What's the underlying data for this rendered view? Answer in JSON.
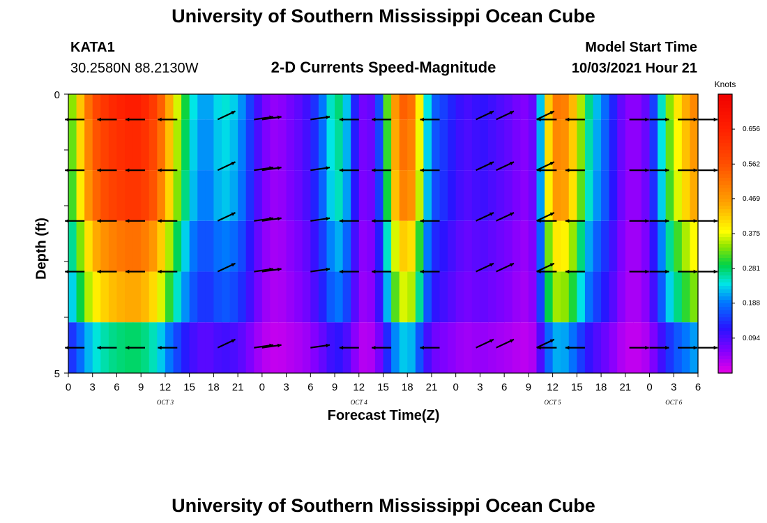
{
  "page": {
    "top_title": "University of Southern Mississippi Ocean Cube",
    "bottom_title": "University of Southern Mississippi Ocean Cube"
  },
  "station": {
    "id": "KATA1",
    "coords": "30.2580N  88.2130W"
  },
  "model_start": {
    "label": "Model Start Time",
    "value": "10/03/2021 Hour 21"
  },
  "chart_data": {
    "type": "heatmap",
    "title": "2-D Currents Speed-Magnitude",
    "xlabel": "Forecast Time(Z)",
    "ylabel": "Depth (ft)",
    "x_ticks": [
      "0",
      "3",
      "6",
      "9",
      "12",
      "15",
      "18",
      "21",
      "0",
      "3",
      "6",
      "9",
      "12",
      "15",
      "18",
      "21",
      "0",
      "3",
      "6",
      "9",
      "12",
      "15",
      "18",
      "21",
      "0",
      "3",
      "6"
    ],
    "date_labels": [
      {
        "text": "OCT 3",
        "tick_index": 4
      },
      {
        "text": "OCT 4",
        "tick_index": 12
      },
      {
        "text": "OCT 5",
        "tick_index": 20
      },
      {
        "text": "OCT 6",
        "tick_index": 25
      }
    ],
    "y_ticks": [
      "0",
      "5"
    ],
    "y_range": [
      0,
      5
    ],
    "x_range_hours": [
      0,
      78
    ],
    "colorbar": {
      "unit": "Knots",
      "ticks": [
        "0.656",
        "0.562",
        "0.469",
        "0.375",
        "0.281",
        "0.188",
        "0.094"
      ],
      "range": [
        0,
        0.75
      ]
    },
    "speed_profile_hours": [
      0,
      1,
      2,
      3,
      4,
      5,
      6,
      7,
      8,
      9,
      10,
      11,
      12,
      13,
      14,
      15,
      16,
      17,
      18,
      19,
      20,
      21,
      22,
      23,
      24,
      25,
      26,
      27,
      28,
      29,
      30,
      31,
      32,
      33,
      34,
      35,
      36,
      37,
      38,
      39,
      40,
      41,
      42,
      43,
      44,
      45,
      46,
      47,
      48,
      49,
      50,
      51,
      52,
      53,
      54,
      55,
      56,
      57,
      58,
      59,
      60,
      61,
      62,
      63,
      64,
      65,
      66,
      67,
      68,
      69,
      70,
      71,
      72,
      73,
      74,
      75,
      76,
      77,
      78
    ],
    "speed_profile_knots": [
      0.3,
      0.38,
      0.48,
      0.56,
      0.6,
      0.63,
      0.65,
      0.66,
      0.67,
      0.66,
      0.63,
      0.58,
      0.5,
      0.4,
      0.33,
      0.26,
      0.22,
      0.2,
      0.22,
      0.25,
      0.24,
      0.22,
      0.18,
      0.12,
      0.08,
      0.05,
      0.05,
      0.06,
      0.08,
      0.09,
      0.12,
      0.16,
      0.22,
      0.28,
      0.27,
      0.18,
      0.08,
      0.06,
      0.1,
      0.22,
      0.42,
      0.52,
      0.56,
      0.48,
      0.3,
      0.18,
      0.16,
      0.14,
      0.12,
      0.1,
      0.1,
      0.12,
      0.11,
      0.1,
      0.09,
      0.08,
      0.06,
      0.06,
      0.1,
      0.35,
      0.5,
      0.52,
      0.48,
      0.4,
      0.3,
      0.24,
      0.2,
      0.16,
      0.1,
      0.06,
      0.05,
      0.06,
      0.1,
      0.2,
      0.3,
      0.38,
      0.42,
      0.48,
      0.5
    ],
    "depth_factors": [
      1.0,
      0.96,
      0.92,
      0.78,
      0.68,
      0.42
    ],
    "arrow_columns_hours": [
      2,
      6,
      9.5,
      13.5,
      18.5,
      23,
      24,
      30,
      36,
      40,
      46,
      50.5,
      53,
      58,
      60.5,
      64,
      69.5,
      72,
      75.5,
      78
    ],
    "arrow_depth_rows": [
      1,
      2,
      3,
      4,
      5
    ]
  }
}
